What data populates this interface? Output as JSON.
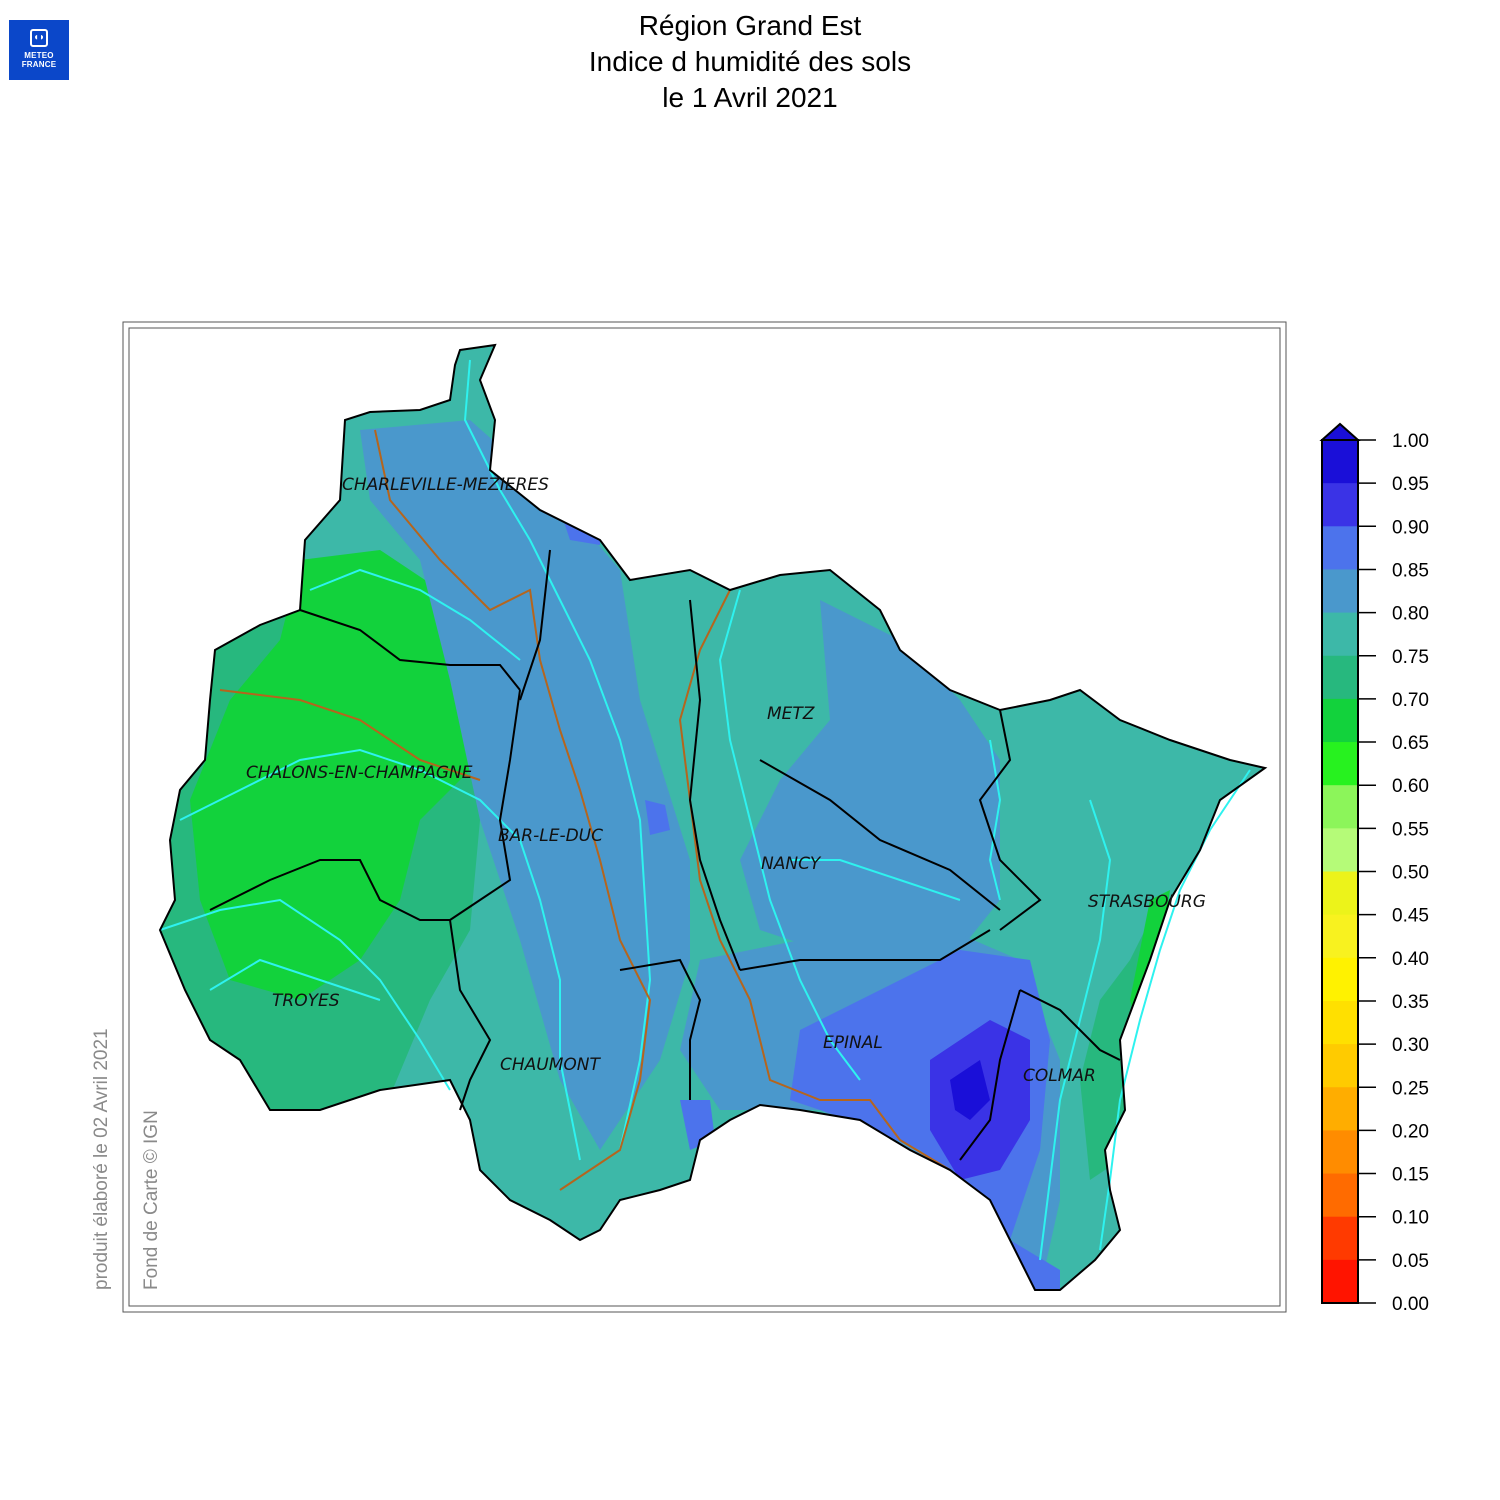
{
  "logo": {
    "line1": "METEO",
    "line2": "FRANCE"
  },
  "title": {
    "line1": "Région Grand Est",
    "line2": "Indice d humidité des sols",
    "line3": "le 1 Avril 2021"
  },
  "cities": [
    {
      "name": "CHARLEVILLE-MEZIERES"
    },
    {
      "name": "METZ"
    },
    {
      "name": "CHALONS-EN-CHAMPAGNE"
    },
    {
      "name": "BAR-LE-DUC"
    },
    {
      "name": "NANCY"
    },
    {
      "name": "STRASBOURG"
    },
    {
      "name": "TROYES"
    },
    {
      "name": "EPINAL"
    },
    {
      "name": "CHAUMONT"
    },
    {
      "name": "COLMAR"
    }
  ],
  "legend": {
    "ticks": [
      "1.00",
      "0.95",
      "0.90",
      "0.85",
      "0.80",
      "0.75",
      "0.70",
      "0.65",
      "0.60",
      "0.55",
      "0.50",
      "0.45",
      "0.40",
      "0.35",
      "0.30",
      "0.25",
      "0.20",
      "0.15",
      "0.10",
      "0.05",
      "0.00"
    ],
    "colors": [
      "#1a0fd8",
      "#3a33e6",
      "#4c73ec",
      "#4a98cc",
      "#3db8a8",
      "#27b87e",
      "#12d23c",
      "#27f21f",
      "#8cf55a",
      "#b5fb78",
      "#ecf31a",
      "#f8f21f",
      "#fff200",
      "#ffe000",
      "#ffcb00",
      "#ffad00",
      "#ff8c00",
      "#ff6b00",
      "#ff3a00",
      "#ff1400",
      "#e0000b"
    ]
  },
  "credits": {
    "produced": "produit élaboré le 02 Avril 2021",
    "basemap": "Fond de Carte © IGN"
  }
}
